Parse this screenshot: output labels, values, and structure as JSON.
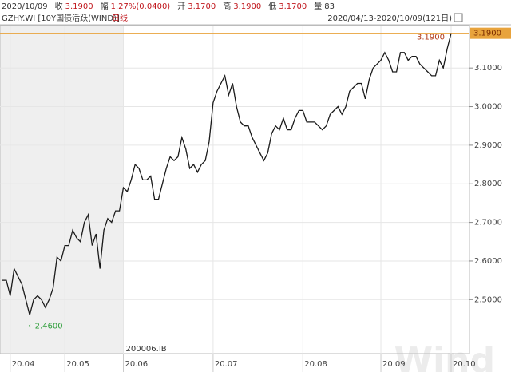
{
  "chart_data": {
    "type": "line",
    "quote": {
      "date": "2020/10/09",
      "fields": [
        {
          "label": "收",
          "text": "3.1900"
        },
        {
          "label": "幅",
          "text": "1.27%(0.0400)"
        },
        {
          "label": "开",
          "text": "3.1700"
        },
        {
          "label": "高",
          "text": "3.1900"
        },
        {
          "label": "低",
          "text": "3.1700"
        },
        {
          "label": "量",
          "text": "83"
        }
      ]
    },
    "symbol": "GZHY.WI [10Y国债活跃(WIND)]",
    "period": "日线",
    "range": "2020/04/13-2020/10/09(121日)",
    "instrument_label": "200006.IB",
    "watermark": "Wind",
    "color": "#1a1a1a",
    "grid": true,
    "categories": [
      null,
      null,
      "20.04",
      null,
      null,
      null,
      null,
      null,
      null,
      null,
      null,
      null,
      null,
      null,
      null,
      null,
      "20.05",
      null,
      null,
      null,
      null,
      null,
      null,
      null,
      null,
      null,
      null,
      null,
      null,
      null,
      null,
      "20.06",
      null,
      null,
      null,
      null,
      null,
      null,
      null,
      null,
      null,
      null,
      null,
      null,
      null,
      null,
      null,
      null,
      null,
      null,
      null,
      null,
      null,
      null,
      "20.07",
      null,
      null,
      null,
      null,
      null,
      null,
      null,
      null,
      null,
      null,
      null,
      null,
      null,
      null,
      null,
      null,
      null,
      null,
      null,
      null,
      null,
      null,
      "20.08",
      null,
      null,
      null,
      null,
      null,
      null,
      null,
      null,
      null,
      null,
      null,
      null,
      null,
      null,
      null,
      null,
      null,
      null,
      null,
      "20.09",
      null,
      null,
      null,
      null,
      null,
      null,
      null,
      null,
      null,
      null,
      null,
      null,
      null,
      null,
      null,
      null,
      null,
      "20.10"
    ],
    "values": [
      2.55,
      2.55,
      2.51,
      2.58,
      2.56,
      2.54,
      2.5,
      2.46,
      2.5,
      2.51,
      2.5,
      2.48,
      2.5,
      2.53,
      2.61,
      2.6,
      2.64,
      2.64,
      2.68,
      2.66,
      2.65,
      2.7,
      2.72,
      2.64,
      2.67,
      2.58,
      2.68,
      2.71,
      2.7,
      2.73,
      2.73,
      2.79,
      2.78,
      2.81,
      2.85,
      2.84,
      2.81,
      2.81,
      2.82,
      2.76,
      2.76,
      2.8,
      2.84,
      2.87,
      2.86,
      2.87,
      2.92,
      2.89,
      2.84,
      2.85,
      2.83,
      2.85,
      2.86,
      2.91,
      3.01,
      3.04,
      3.06,
      3.08,
      3.03,
      3.06,
      3.0,
      2.96,
      2.95,
      2.95,
      2.92,
      2.9,
      2.88,
      2.86,
      2.88,
      2.93,
      2.95,
      2.94,
      2.97,
      2.94,
      2.94,
      2.97,
      2.99,
      2.99,
      2.96,
      2.96,
      2.96,
      2.95,
      2.94,
      2.95,
      2.98,
      2.99,
      3.0,
      2.98,
      3.0,
      3.04,
      3.05,
      3.06,
      3.06,
      3.02,
      3.07,
      3.1,
      3.11,
      3.12,
      3.14,
      3.12,
      3.09,
      3.09,
      3.14,
      3.14,
      3.12,
      3.13,
      3.13,
      3.11,
      3.1,
      3.09,
      3.08,
      3.08,
      3.12,
      3.1,
      3.15,
      3.19
    ],
    "value_labels": [
      null,
      null,
      null,
      null,
      null,
      null,
      null,
      "←2.4600",
      null,
      null,
      null,
      null,
      null,
      null,
      null,
      null,
      null,
      null,
      null,
      null,
      null,
      null,
      null,
      null,
      null,
      null,
      null,
      null,
      null,
      null,
      null,
      null,
      null,
      null,
      null,
      null,
      null,
      null,
      null,
      null,
      null,
      null,
      null,
      null,
      null,
      null,
      null,
      null,
      null,
      null,
      null,
      null,
      null,
      null,
      null,
      null,
      null,
      null,
      null,
      null,
      null,
      null,
      null,
      null,
      null,
      null,
      null,
      null,
      null,
      null,
      null,
      null,
      null,
      null,
      null,
      null,
      null,
      null,
      null,
      null,
      null,
      null,
      null,
      null,
      null,
      null,
      null,
      null,
      null,
      null,
      null,
      null,
      null,
      null,
      null,
      null,
      null,
      null,
      null,
      null,
      null,
      null,
      null,
      null,
      null,
      null,
      null,
      null,
      null,
      null,
      null,
      null,
      null,
      null,
      null,
      "3.1900"
    ],
    "ref_line": {
      "value": 3.19,
      "label": "3.1900",
      "color": "#e8a33c"
    },
    "ylim": [
      2.36,
      3.21
    ],
    "yticks": [
      {
        "value": 2.5,
        "label": "2.5000"
      },
      {
        "value": 2.6,
        "label": "2.6000"
      },
      {
        "value": 2.7,
        "label": "2.7000"
      },
      {
        "value": 2.8,
        "label": "2.8000"
      },
      {
        "value": 2.9,
        "label": "2.9000"
      },
      {
        "value": 3.0,
        "label": "3.0000"
      },
      {
        "value": 3.1,
        "label": "3.1000"
      }
    ]
  }
}
